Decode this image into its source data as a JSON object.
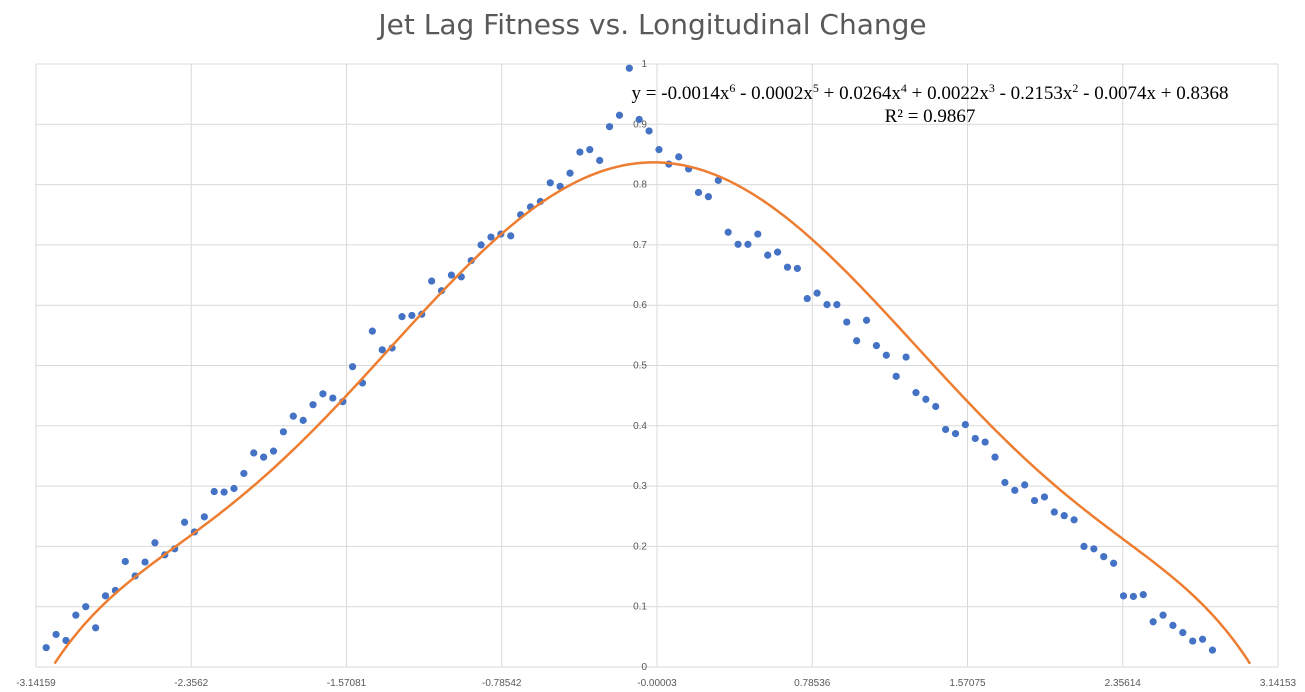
{
  "chart_data": {
    "type": "scatter",
    "title": "Jet Lag Fitness vs. Longitudinal Change",
    "xlabel": "",
    "ylabel": "",
    "xlim": [
      -3.14159,
      3.14153
    ],
    "ylim": [
      0,
      1
    ],
    "x_ticks": [
      "-3.14159",
      "-2.3562",
      "-1.57081",
      "-0.78542",
      "-0.00003",
      "0.78536",
      "1.57075",
      "2.35614",
      "3.14153"
    ],
    "y_ticks": [
      "0",
      "0.1",
      "0.2",
      "0.3",
      "0.4",
      "0.5",
      "0.6",
      "0.7",
      "0.8",
      "0.9",
      "1"
    ],
    "grid": true,
    "colors": {
      "points": "#4472C4",
      "trendline": "#ED7D31"
    },
    "trendline": {
      "type": "polynomial",
      "order": 6,
      "coefficients": [
        -0.0014,
        -0.0002,
        0.0264,
        0.0022,
        -0.2153,
        -0.0074,
        0.8368
      ],
      "equation_parts": [
        "y = -0.0014x",
        "6",
        " - 0.0002x",
        "5",
        " + 0.0264x",
        "4",
        " + 0.0022x",
        "3",
        " - 0.2153x",
        "2",
        " - 0.0074x + 0.8368"
      ],
      "r_squared_label": "R² = 0.9867"
    },
    "points": [
      [
        -3.09,
        0.032
      ],
      [
        -3.04,
        0.054
      ],
      [
        -2.99,
        0.044
      ],
      [
        -2.94,
        0.086
      ],
      [
        -2.89,
        0.1
      ],
      [
        -2.84,
        0.065
      ],
      [
        -2.79,
        0.118
      ],
      [
        -2.74,
        0.127
      ],
      [
        -2.69,
        0.175
      ],
      [
        -2.64,
        0.151
      ],
      [
        -2.59,
        0.174
      ],
      [
        -2.54,
        0.206
      ],
      [
        -2.49,
        0.186
      ],
      [
        -2.44,
        0.196
      ],
      [
        -2.39,
        0.24
      ],
      [
        -2.34,
        0.224
      ],
      [
        -2.29,
        0.249
      ],
      [
        -2.24,
        0.291
      ],
      [
        -2.19,
        0.29
      ],
      [
        -2.14,
        0.296
      ],
      [
        -2.09,
        0.321
      ],
      [
        -2.04,
        0.355
      ],
      [
        -1.99,
        0.348
      ],
      [
        -1.94,
        0.358
      ],
      [
        -1.89,
        0.39
      ],
      [
        -1.84,
        0.416
      ],
      [
        -1.79,
        0.409
      ],
      [
        -1.74,
        0.435
      ],
      [
        -1.69,
        0.453
      ],
      [
        -1.64,
        0.446
      ],
      [
        -1.59,
        0.44
      ],
      [
        -1.54,
        0.498
      ],
      [
        -1.49,
        0.471
      ],
      [
        -1.44,
        0.557
      ],
      [
        -1.39,
        0.526
      ],
      [
        -1.34,
        0.529
      ],
      [
        -1.29,
        0.581
      ],
      [
        -1.24,
        0.583
      ],
      [
        -1.19,
        0.585
      ],
      [
        -1.14,
        0.64
      ],
      [
        -1.09,
        0.624
      ],
      [
        -1.04,
        0.65
      ],
      [
        -0.99,
        0.647
      ],
      [
        -0.94,
        0.674
      ],
      [
        -0.89,
        0.7
      ],
      [
        -0.84,
        0.713
      ],
      [
        -0.79,
        0.718
      ],
      [
        -0.74,
        0.715
      ],
      [
        -0.69,
        0.75
      ],
      [
        -0.64,
        0.763
      ],
      [
        -0.59,
        0.772
      ],
      [
        -0.54,
        0.803
      ],
      [
        -0.49,
        0.797
      ],
      [
        -0.44,
        0.819
      ],
      [
        -0.39,
        0.854
      ],
      [
        -0.34,
        0.858
      ],
      [
        -0.29,
        0.84
      ],
      [
        -0.24,
        0.896
      ],
      [
        -0.19,
        0.915
      ],
      [
        -0.14,
        0.993
      ],
      [
        -0.09,
        0.908
      ],
      [
        -0.04,
        0.889
      ],
      [
        0.01,
        0.858
      ],
      [
        0.06,
        0.834
      ],
      [
        0.11,
        0.846
      ],
      [
        0.16,
        0.826
      ],
      [
        0.21,
        0.787
      ],
      [
        0.26,
        0.78
      ],
      [
        0.31,
        0.807
      ],
      [
        0.36,
        0.721
      ],
      [
        0.41,
        0.701
      ],
      [
        0.46,
        0.701
      ],
      [
        0.51,
        0.718
      ],
      [
        0.56,
        0.683
      ],
      [
        0.61,
        0.688
      ],
      [
        0.66,
        0.663
      ],
      [
        0.71,
        0.661
      ],
      [
        0.76,
        0.611
      ],
      [
        0.81,
        0.62
      ],
      [
        0.86,
        0.601
      ],
      [
        0.91,
        0.601
      ],
      [
        0.96,
        0.572
      ],
      [
        1.01,
        0.541
      ],
      [
        1.06,
        0.575
      ],
      [
        1.11,
        0.533
      ],
      [
        1.16,
        0.517
      ],
      [
        1.21,
        0.482
      ],
      [
        1.26,
        0.514
      ],
      [
        1.31,
        0.455
      ],
      [
        1.36,
        0.444
      ],
      [
        1.41,
        0.432
      ],
      [
        1.46,
        0.394
      ],
      [
        1.51,
        0.387
      ],
      [
        1.56,
        0.402
      ],
      [
        1.61,
        0.379
      ],
      [
        1.66,
        0.373
      ],
      [
        1.71,
        0.348
      ],
      [
        1.76,
        0.306
      ],
      [
        1.81,
        0.293
      ],
      [
        1.86,
        0.302
      ],
      [
        1.91,
        0.276
      ],
      [
        1.96,
        0.282
      ],
      [
        2.01,
        0.257
      ],
      [
        2.06,
        0.251
      ],
      [
        2.11,
        0.244
      ],
      [
        2.16,
        0.2
      ],
      [
        2.21,
        0.196
      ],
      [
        2.26,
        0.183
      ],
      [
        2.31,
        0.172
      ],
      [
        2.36,
        0.118
      ],
      [
        2.41,
        0.117
      ],
      [
        2.46,
        0.12
      ],
      [
        2.51,
        0.075
      ],
      [
        2.56,
        0.086
      ],
      [
        2.61,
        0.069
      ],
      [
        2.66,
        0.057
      ],
      [
        2.71,
        0.043
      ],
      [
        2.76,
        0.046
      ],
      [
        2.81,
        0.028
      ]
    ]
  }
}
